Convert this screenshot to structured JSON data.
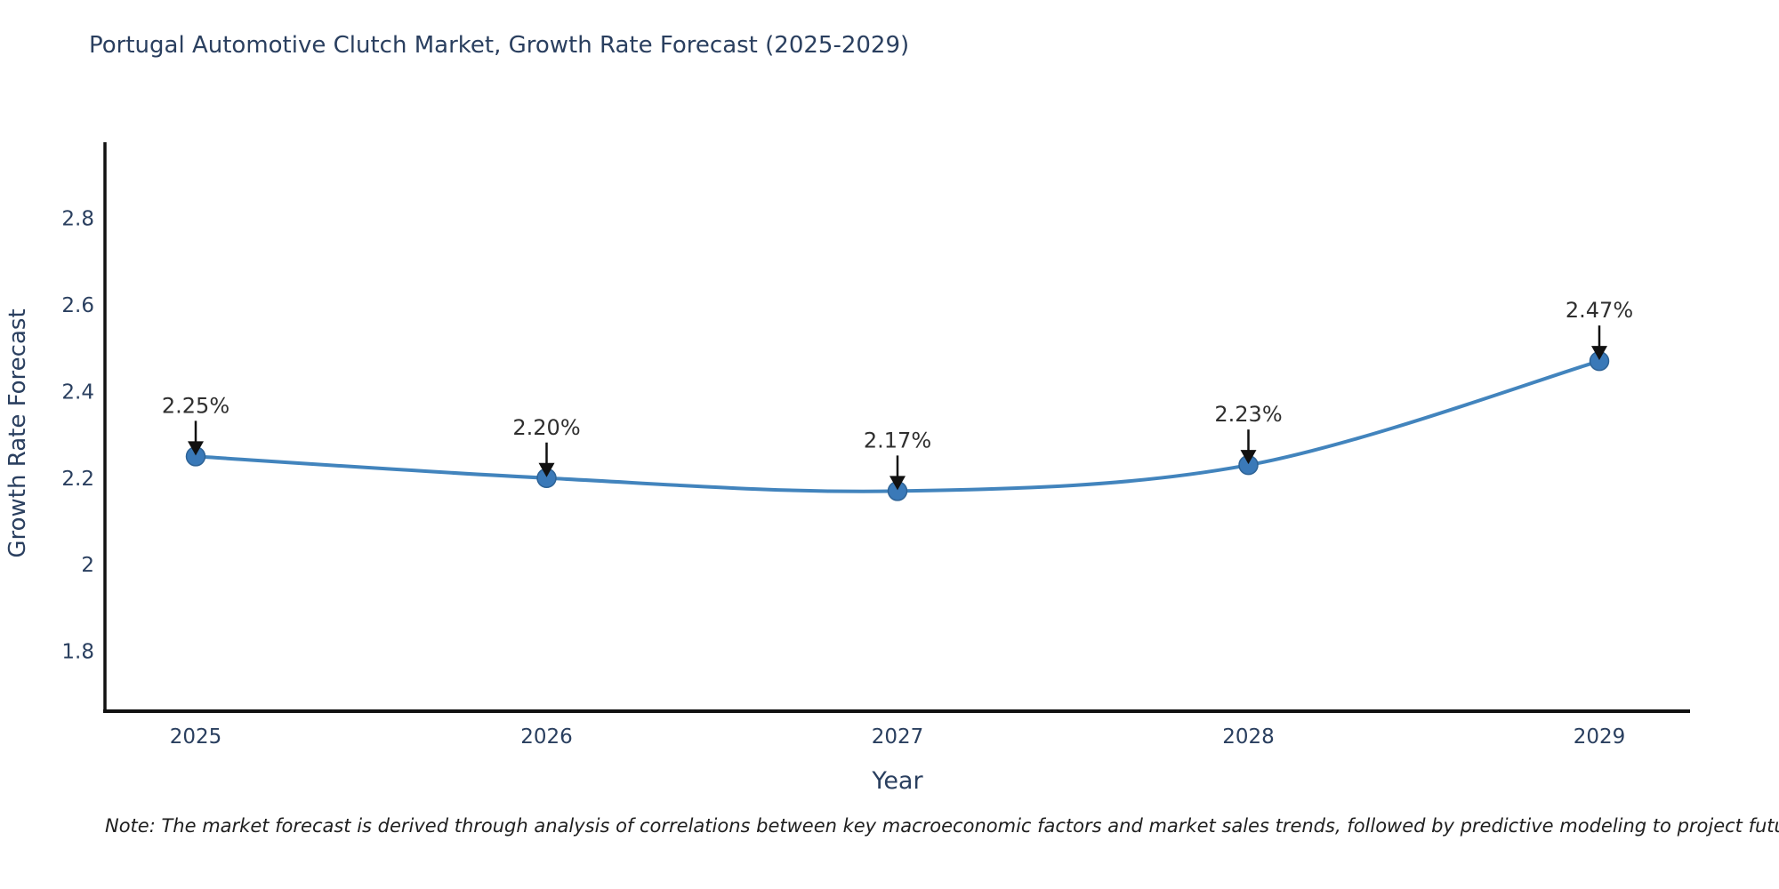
{
  "title": "Portugal Automotive Clutch Market, Growth Rate Forecast (2025-2029)",
  "note": "Note: The market forecast is derived through analysis of correlations between key macroeconomic factors and market sales trends, followed by predictive modeling to project future sales",
  "chart_data": {
    "type": "line",
    "x": [
      "2025",
      "2026",
      "2027",
      "2028",
      "2029"
    ],
    "series": [
      {
        "name": "Growth Rate Forecast",
        "values": [
          2.25,
          2.2,
          2.17,
          2.23,
          2.47
        ]
      }
    ],
    "point_labels": [
      "2.25%",
      "2.20%",
      "2.17%",
      "2.23%",
      "2.47%"
    ],
    "xlabel": "Year",
    "ylabel": "Growth Rate Forecast",
    "y_ticks": [
      1.8,
      2.0,
      2.2,
      2.4,
      2.6,
      2.8
    ],
    "y_tick_labels": [
      "1.8",
      "2",
      "2.2",
      "2.4",
      "2.6",
      "2.8"
    ],
    "ylim": [
      1.662,
      2.975
    ],
    "grid": false,
    "legend": "none",
    "colors": {
      "line": "#4284bd",
      "marker": "#3a79b8",
      "marker_edge": "#2e6396",
      "axis": "#111111",
      "text": "#2a3f5f",
      "annotation_text": "#2f2f2f",
      "arrow": "#111111"
    }
  }
}
